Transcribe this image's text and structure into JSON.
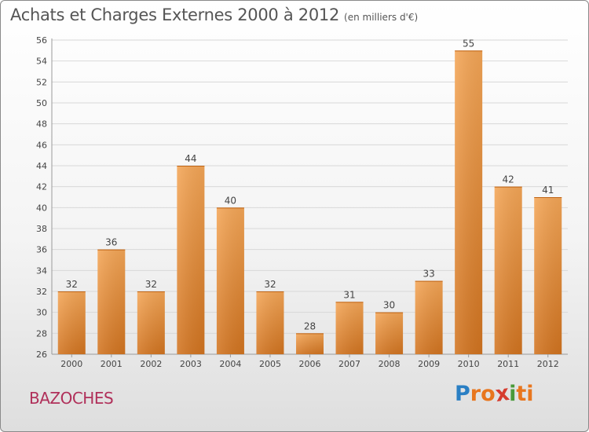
{
  "title": "Achats et Charges Externes 2000 à 2012",
  "subtitle": "(en milliers d'€)",
  "town": "BAZOCHES",
  "brand": {
    "letters": [
      "P",
      "r",
      "o",
      "x",
      "i",
      "t",
      "i"
    ],
    "colors": [
      "#2a7fc4",
      "#e8761e",
      "#e8761e",
      "#d63c2f",
      "#4a9a3a",
      "#e8761e",
      "#e8761e"
    ]
  },
  "colors": {
    "bar_top": "#f4a657",
    "bar_bottom": "#d27420",
    "grid": "#d8d8d8",
    "axis_text": "#444444"
  },
  "chart_data": {
    "type": "bar",
    "categories": [
      "2000",
      "2001",
      "2002",
      "2003",
      "2004",
      "2005",
      "2006",
      "2007",
      "2008",
      "2009",
      "2010",
      "2011",
      "2012"
    ],
    "values": [
      32,
      36,
      32,
      44,
      40,
      32,
      28,
      31,
      30,
      33,
      55,
      42,
      41
    ],
    "title": "Achats et Charges Externes 2000 à 2012",
    "subtitle": "(en milliers d'€)",
    "xlabel": "",
    "ylabel": "",
    "ylim": [
      26,
      56
    ],
    "yticks": [
      26,
      28,
      30,
      32,
      34,
      36,
      38,
      40,
      42,
      44,
      46,
      48,
      50,
      52,
      54,
      56
    ],
    "grid": true,
    "data_labels": true
  }
}
